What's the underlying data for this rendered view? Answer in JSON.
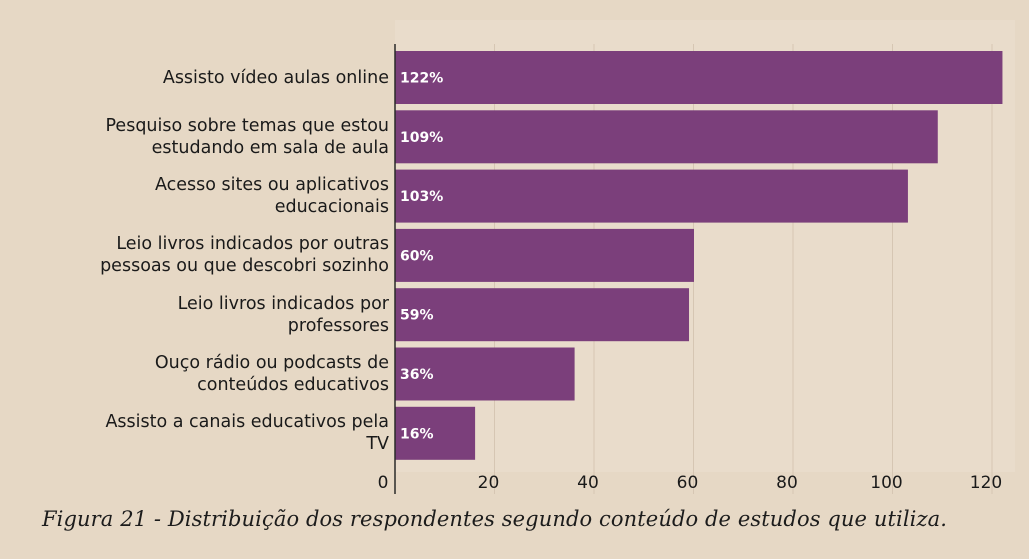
{
  "chart_data": {
    "type": "bar",
    "orientation": "horizontal",
    "categories": [
      "Assisto vídeo aulas online",
      "Pesquiso sobre temas que estou\nestudando em sala de aula",
      "Acesso sites ou aplicativos\neducacionais",
      "Leio livros indicados por outras\npessoas ou que descobri sozinho",
      "Leio livros indicados por\nprofessores",
      "Ouço rádio ou podcasts de\nconteúdos educativos",
      "Assisto a canais educativos pela\nTV"
    ],
    "values": [
      122,
      109,
      103,
      60,
      59,
      36,
      16
    ],
    "data_labels": [
      "122%",
      "109%",
      "103%",
      "60%",
      "59%",
      "36%",
      "16%"
    ],
    "x_ticks": [
      0,
      20,
      40,
      60,
      80,
      100,
      120
    ],
    "xlim": [
      0,
      122
    ],
    "grid": "vertical",
    "bar_color": "#7b3f7b",
    "grid_color": "#d6c6b3"
  },
  "caption": "Figura 21 - Distribuição dos respondentes segundo conteúdo de estudos que utiliza."
}
